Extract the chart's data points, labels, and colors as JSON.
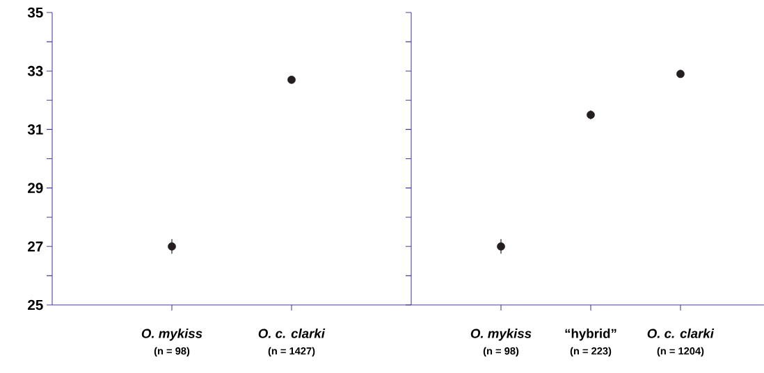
{
  "chart_data": [
    {
      "type": "scatter",
      "categories": [
        "*O. mykiss*",
        "*O. c. clarki*"
      ],
      "values": [
        27.0,
        32.7
      ],
      "errors": [
        0.25,
        null
      ],
      "color": "#231f20",
      "marker": "circle",
      "ylim": [
        25,
        35
      ],
      "yticks": [
        25,
        {
          "value": 26,
          "label": null
        },
        27,
        {
          "value": 28,
          "label": null
        },
        29,
        {
          "value": 30,
          "label": null
        },
        31,
        {
          "value": 32,
          "label": null
        },
        33,
        {
          "value": 34,
          "label": null
        },
        35
      ],
      "annotations": [
        "(n = 98)",
        "(n = 1427)"
      ]
    },
    {
      "type": "scatter",
      "categories": [
        "*O. mykiss*",
        "“hybrid”",
        "*O. c. clarki*"
      ],
      "values": [
        27.0,
        31.5,
        32.9
      ],
      "errors": [
        0.25,
        0.15,
        null
      ],
      "color": "#231f20",
      "marker": "circle",
      "ylim": [
        25,
        35
      ],
      "yticks": [
        25,
        {
          "value": 26,
          "label": null
        },
        27,
        {
          "value": 28,
          "label": null
        },
        29,
        {
          "value": 30,
          "label": null
        },
        31,
        {
          "value": 32,
          "label": null
        },
        33,
        {
          "value": 34,
          "label": null
        },
        35
      ],
      "tick_labels": "x",
      "annotations": [
        "(n = 98)",
        "(n = 223)",
        "(n = 1204)"
      ]
    }
  ]
}
